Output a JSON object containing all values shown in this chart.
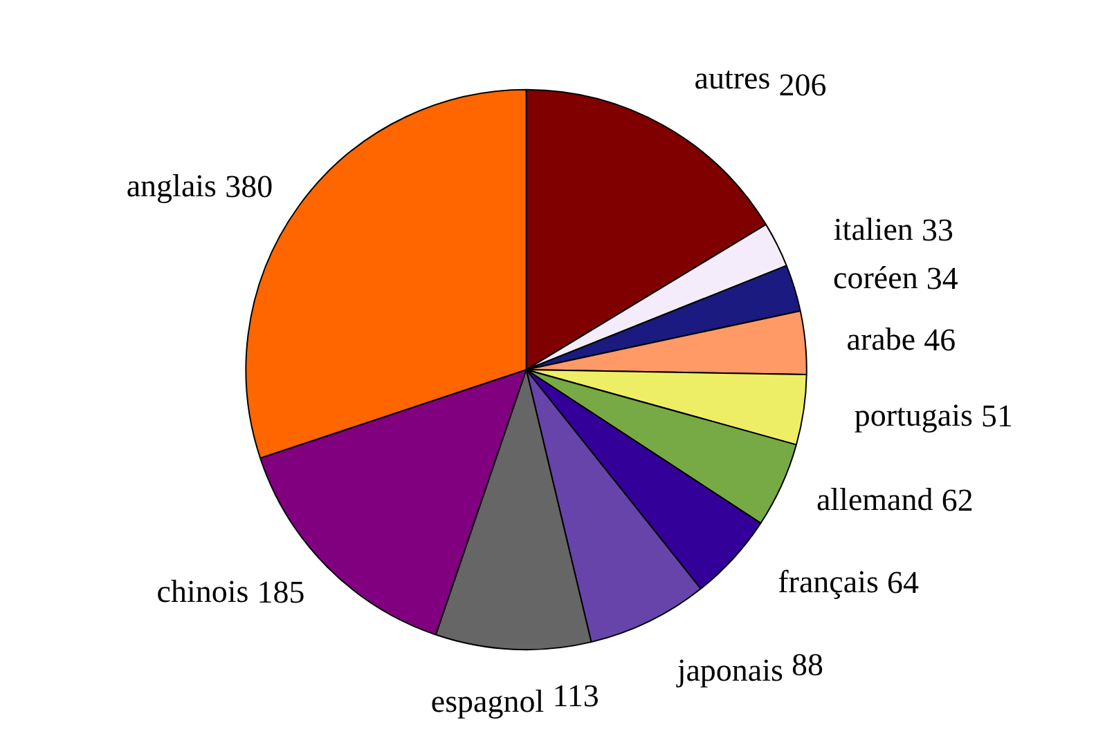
{
  "chart_data": {
    "type": "pie",
    "categories": [
      "autres",
      "italien",
      "coréen",
      "arabe",
      "portugais",
      "allemand",
      "français",
      "japonais",
      "espagnol",
      "chinois",
      "anglais"
    ],
    "values": [
      206,
      33,
      34,
      46,
      51,
      62,
      64,
      88,
      113,
      185,
      380
    ],
    "colors": [
      "#800000",
      "#f4ecfa",
      "#1a1a80",
      "#ff9966",
      "#eeee66",
      "#77aa44",
      "#330099",
      "#6644aa",
      "#666666",
      "#800080",
      "#ff6600"
    ],
    "data_labels": true
  }
}
